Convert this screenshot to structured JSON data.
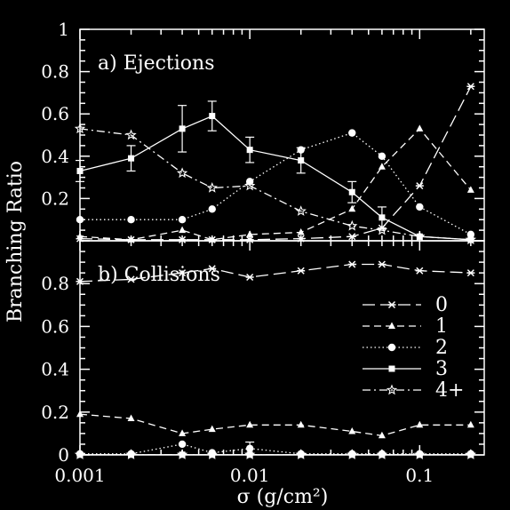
{
  "chart_data": [
    {
      "panel": "a",
      "type": "line",
      "title": "a) Ejections",
      "xscale": "log",
      "xlim": [
        0.001,
        0.24
      ],
      "ylim": [
        0,
        1
      ],
      "y_ticks": [
        0.2,
        0.4,
        0.6,
        0.8,
        1
      ],
      "y_tick_labels": [
        "0.2",
        "0.4",
        "0.6",
        "0.8",
        "1"
      ],
      "x": [
        0.001,
        0.002,
        0.004,
        0.006,
        0.01,
        0.02,
        0.04,
        0.06,
        0.1,
        0.2
      ],
      "series": [
        {
          "name": "0",
          "style": "long-dash",
          "marker": "cross",
          "values": [
            0.01,
            0.005,
            0.005,
            0.005,
            0.005,
            0.01,
            0.02,
            0.06,
            0.26,
            0.73
          ]
        },
        {
          "name": "1",
          "style": "dashed",
          "marker": "triangle",
          "values": [
            0.02,
            0.005,
            0.05,
            0.005,
            0.03,
            0.04,
            0.15,
            0.35,
            0.53,
            0.24
          ]
        },
        {
          "name": "2",
          "style": "dotted",
          "marker": "circle",
          "values": [
            0.1,
            0.1,
            0.1,
            0.15,
            0.28,
            0.43,
            0.51,
            0.4,
            0.16,
            0.03
          ]
        },
        {
          "name": "3",
          "style": "solid",
          "marker": "square",
          "values": [
            0.33,
            0.39,
            0.53,
            0.59,
            0.43,
            0.38,
            0.23,
            0.11,
            0.02,
            0.005
          ],
          "errors": [
            0.05,
            0.06,
            0.11,
            0.07,
            0.06,
            0.06,
            0.05,
            0.05,
            0.0,
            0.0
          ]
        },
        {
          "name": "4+",
          "style": "dash-dot",
          "marker": "star",
          "values": [
            0.53,
            0.5,
            0.32,
            0.25,
            0.26,
            0.14,
            0.07,
            0.05,
            0.02,
            0.005
          ]
        }
      ]
    },
    {
      "panel": "b",
      "type": "line",
      "title": "b) Collisions",
      "xscale": "log",
      "xlim": [
        0.001,
        0.24
      ],
      "ylim": [
        0,
        1
      ],
      "y_ticks": [
        0,
        0.2,
        0.4,
        0.6,
        0.8
      ],
      "y_tick_labels": [
        "0",
        "0.2",
        "0.4",
        "0.6",
        "0.8"
      ],
      "x_ticks": [
        0.001,
        0.01,
        0.1
      ],
      "x_tick_labels": [
        "0.001",
        "0.01",
        "0.1"
      ],
      "x": [
        0.001,
        0.002,
        0.004,
        0.006,
        0.01,
        0.02,
        0.04,
        0.06,
        0.1,
        0.2
      ],
      "series": [
        {
          "name": "0",
          "style": "long-dash",
          "marker": "cross",
          "values": [
            0.81,
            0.82,
            0.85,
            0.87,
            0.83,
            0.86,
            0.89,
            0.89,
            0.86,
            0.85
          ]
        },
        {
          "name": "1",
          "style": "dashed",
          "marker": "triangle",
          "values": [
            0.19,
            0.17,
            0.1,
            0.12,
            0.14,
            0.14,
            0.11,
            0.09,
            0.14,
            0.14
          ]
        },
        {
          "name": "2",
          "style": "dotted",
          "marker": "circle",
          "values": [
            0.005,
            0.005,
            0.05,
            0.01,
            0.03,
            0.005,
            0.005,
            0.005,
            0.005,
            0.005
          ],
          "errors": [
            0,
            0,
            0,
            0,
            0.03,
            0,
            0,
            0,
            0,
            0
          ]
        },
        {
          "name": "3",
          "style": "solid",
          "marker": "square",
          "values": [
            0.001,
            0.001,
            0.001,
            0.001,
            0.001,
            0.001,
            0.001,
            0.001,
            0.001,
            0.001
          ]
        },
        {
          "name": "4+",
          "style": "dash-dot",
          "marker": "star",
          "values": [
            0.001,
            0.001,
            0.001,
            0.001,
            0.001,
            0.001,
            0.001,
            0.001,
            0.001,
            0.001
          ]
        }
      ]
    }
  ],
  "ylabel": "Branching Ratio",
  "xlabel": "σ (g/cm²)",
  "legend": {
    "placement": "bottom panel, right",
    "entries": [
      "0",
      "1",
      "2",
      "3",
      "4+"
    ]
  }
}
